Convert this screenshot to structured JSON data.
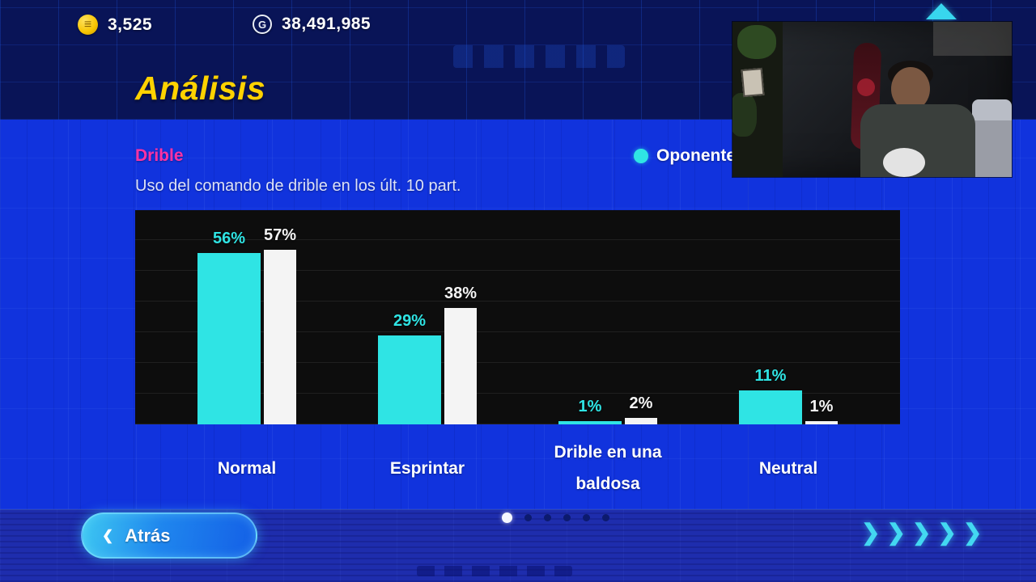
{
  "topbar": {
    "coins": "3,525",
    "gp": "38,491,985"
  },
  "header": {
    "title": "Análisis"
  },
  "section": {
    "title": "Drible",
    "subtitle": "Uso del comando de drible en los últ. 10 part.",
    "legend": {
      "label": "Oponente",
      "color": "#2fe4e4"
    }
  },
  "chart_data": {
    "type": "bar",
    "title": "Uso del comando de drible en los últ. 10 part.",
    "categories": [
      "Normal",
      "Esprintar",
      "Drible en una baldosa",
      "Neutral"
    ],
    "series": [
      {
        "name": "Oponente",
        "color": "#2fe4e4",
        "values": [
          56,
          29,
          1,
          11
        ]
      },
      {
        "name": "",
        "color": "#f4f4f4",
        "values": [
          57,
          38,
          2,
          1
        ]
      }
    ],
    "value_suffix": "%",
    "ylim": [
      0,
      70
    ],
    "plot_background": "#0d0d0d",
    "grid": true,
    "legend_position": "top-right"
  },
  "pagination": {
    "count": 6,
    "active": 0
  },
  "footer": {
    "back_label": "Atrás"
  },
  "icons": {
    "coin": "≡",
    "gp": "G",
    "back_chevron": "❮",
    "footer_chevrons": "❯❯❯❯❯"
  },
  "colors": {
    "accent_yellow": "#ffd200",
    "accent_pink": "#ff32a4",
    "accent_cyan": "#2fe4e4",
    "bg_header": "#091457",
    "bg_main": "#1133dd",
    "bg_footer": "#1e2dad",
    "chart_bg": "#0d0d0d"
  }
}
